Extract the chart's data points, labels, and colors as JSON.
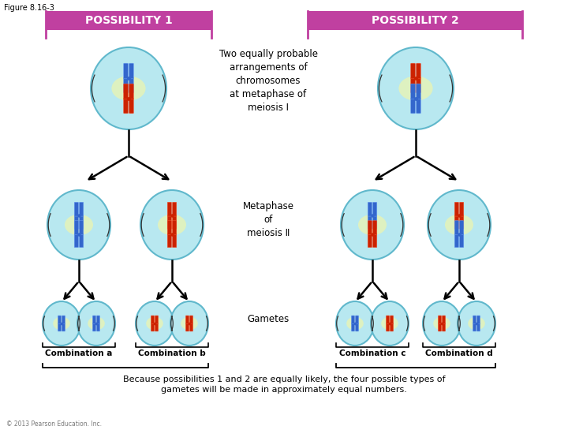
{
  "figure_label": "Figure 8.16-3",
  "possibility1_label": "POSSIBILITY 1",
  "possibility2_label": "POSSIBILITY 2",
  "top_text": "Two equally probable\narrangements of\nchromosomes\nat metaphase of\nmeiosis I",
  "middle_text": "Metaphase\nof\nmeiosis Ⅱ",
  "gametes_text": "Gametes",
  "combinations": [
    "Combination a",
    "Combination b",
    "Combination c",
    "Combination d"
  ],
  "bottom_text": "Because possibilities 1 and 2 are equally likely, the four possible types of\ngametes will be made in approximately equal numbers.",
  "copyright": "© 2013 Pearson Education, Inc.",
  "blue": "#3366CC",
  "blue_light": "#6699EE",
  "red": "#CC2200",
  "red_light": "#EE5533",
  "cell_fill": "#B8E8F0",
  "cell_edge": "#60B8CC",
  "cell_glow": "#EEFFA0",
  "poss_bg": "#C040A0",
  "background": "#FFFFFF",
  "fig_width": 7.2,
  "fig_height": 5.4
}
